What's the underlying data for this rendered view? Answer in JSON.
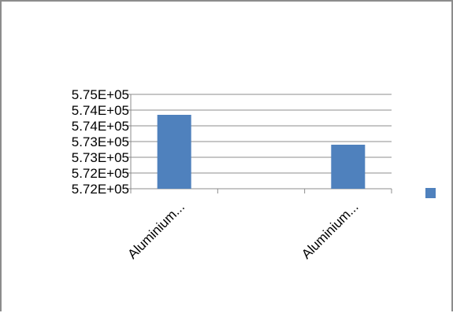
{
  "chart_data": {
    "type": "bar",
    "categories": [
      "Aluminium...",
      "",
      "Aluminium..."
    ],
    "series": [
      {
        "values": [
          574100,
          null,
          573150
        ],
        "color": "#4f81bd"
      }
    ],
    "y_tick_labels": [
      "5.72E+05",
      "5.72E+05",
      "5.73E+05",
      "5.73E+05",
      "5.74E+05",
      "5.74E+05",
      "5.75E+05"
    ],
    "ylim": [
      571750,
      574750
    ],
    "grid": true,
    "legend": "right",
    "title": "",
    "xlabel": "",
    "ylabel": ""
  }
}
